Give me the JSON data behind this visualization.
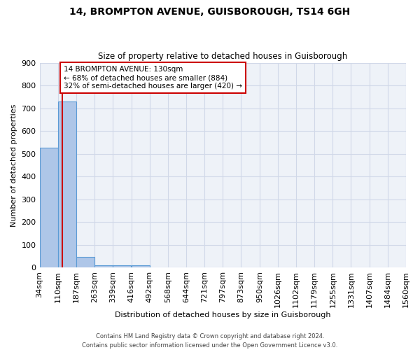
{
  "title": "14, BROMPTON AVENUE, GUISBOROUGH, TS14 6GH",
  "subtitle": "Size of property relative to detached houses in Guisborough",
  "xlabel": "Distribution of detached houses by size in Guisborough",
  "ylabel": "Number of detached properties",
  "footnote1": "Contains HM Land Registry data © Crown copyright and database right 2024.",
  "footnote2": "Contains public sector information licensed under the Open Government Licence v3.0.",
  "bar_values": [
    527,
    730,
    49,
    12,
    11,
    11,
    0,
    0,
    0,
    0,
    0,
    0,
    0,
    0,
    0,
    0,
    0,
    0,
    0
  ],
  "bin_edges": [
    34,
    110,
    187,
    263,
    339,
    416,
    492,
    568,
    644,
    721,
    797,
    873,
    950,
    1026,
    1102,
    1179,
    1255,
    1331,
    1407,
    1484
  ],
  "tick_labels": [
    "34sqm",
    "110sqm",
    "187sqm",
    "263sqm",
    "339sqm",
    "416sqm",
    "492sqm",
    "568sqm",
    "644sqm",
    "721sqm",
    "797sqm",
    "873sqm",
    "950sqm",
    "1026sqm",
    "1102sqm",
    "1179sqm",
    "1255sqm",
    "1331sqm",
    "1407sqm",
    "1484sqm",
    "1560sqm"
  ],
  "bar_color": "#aec6e8",
  "bar_edge_color": "#5b9bd5",
  "grid_color": "#d0d8e8",
  "bg_color": "#eef2f8",
  "red_line_x": 130,
  "bin_width": 76,
  "annotation_text": "14 BROMPTON AVENUE: 130sqm\n← 68% of detached houses are smaller (884)\n32% of semi-detached houses are larger (420) →",
  "annotation_box_color": "#ffffff",
  "annotation_box_edge": "#cc0000",
  "red_line_color": "#cc0000",
  "ylim": [
    0,
    900
  ],
  "yticks": [
    0,
    100,
    200,
    300,
    400,
    500,
    600,
    700,
    800,
    900
  ]
}
